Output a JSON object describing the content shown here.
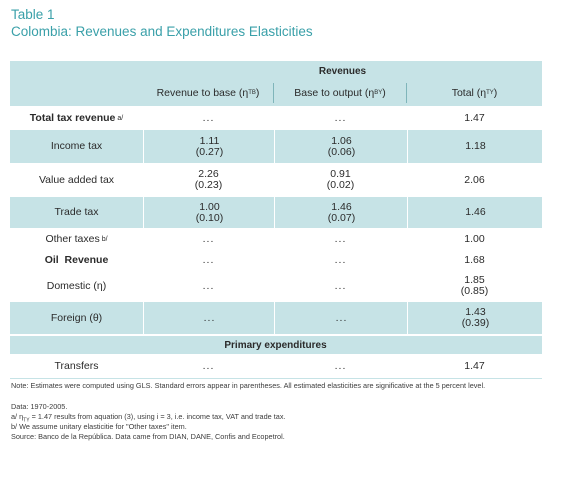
{
  "title_line1": "Table 1",
  "title_line2": "Colombia: Revenues and Expenditures Elasticities",
  "table": {
    "group_header": "Revenues",
    "col_label": "",
    "col1": "Revenue to base (η",
    "col1_sub": "TB",
    "col2": "Base to output (η",
    "col2_sub": "BY",
    "col3": "Total (η",
    "col3_sub": "TY",
    "close_paren": ")",
    "rows": [
      {
        "label": "Total tax revenue",
        "sup": "a/",
        "c1": "...",
        "c1b": "",
        "c2": "...",
        "c2b": "",
        "c3": "1.47",
        "c3b": ""
      },
      {
        "label": "Income tax",
        "sup": "",
        "c1": "1.11",
        "c1b": "(0.27)",
        "c2": "1.06",
        "c2b": "(0.06)",
        "c3": "1.18",
        "c3b": ""
      },
      {
        "label": "Value added tax",
        "sup": "",
        "c1": "2.26",
        "c1b": "(0.23)",
        "c2": "0.91",
        "c2b": "(0.02)",
        "c3": "2.06",
        "c3b": ""
      },
      {
        "label": "Trade tax",
        "sup": "",
        "c1": "1.00",
        "c1b": "(0.10)",
        "c2": "1.46",
        "c2b": "(0.07)",
        "c3": "1.46",
        "c3b": ""
      },
      {
        "label": "Other taxes",
        "sup": "b/",
        "c1": "...",
        "c1b": "",
        "c2": "...",
        "c2b": "",
        "c3": "1.00",
        "c3b": ""
      },
      {
        "label": "Oil  Revenue",
        "sup": "",
        "c1": "...",
        "c1b": "",
        "c2": "...",
        "c2b": "",
        "c3": "1.68",
        "c3b": ""
      },
      {
        "label": "Domestic (η)",
        "sup": "",
        "c1": "...",
        "c1b": "",
        "c2": "...",
        "c2b": "",
        "c3": "1.85",
        "c3b": "(0.85)"
      },
      {
        "label": "Foreign (θ)",
        "sup": "",
        "c1": "...",
        "c1b": "",
        "c2": "...",
        "c2b": "",
        "c3": "1.43",
        "c3b": "(0.39)"
      }
    ],
    "section2_header": "Primary expenditures",
    "row_transfers": {
      "label": "Transfers",
      "c1": "...",
      "c2": "...",
      "c3": "1.47"
    }
  },
  "notes": {
    "n1": "Note: Estimates were computed using GLS. Standard errors appear in parentheses. All estimated elasticities are significative at the 5 percent level.",
    "n2": "Data: 1970-2005.",
    "n3": "a/ η",
    "n3_sub": "TY",
    "n3_rest": " = 1.47 results from aquation (3), using i = 3, i.e. income tax, VAT and trade tax.",
    "n4": "b/ We assume unitary elasticitie for \"Other taxes\" item.",
    "n5": "Source: Banco de la República. Data came from DIAN, DANE, Confis and Ecopetrol."
  }
}
